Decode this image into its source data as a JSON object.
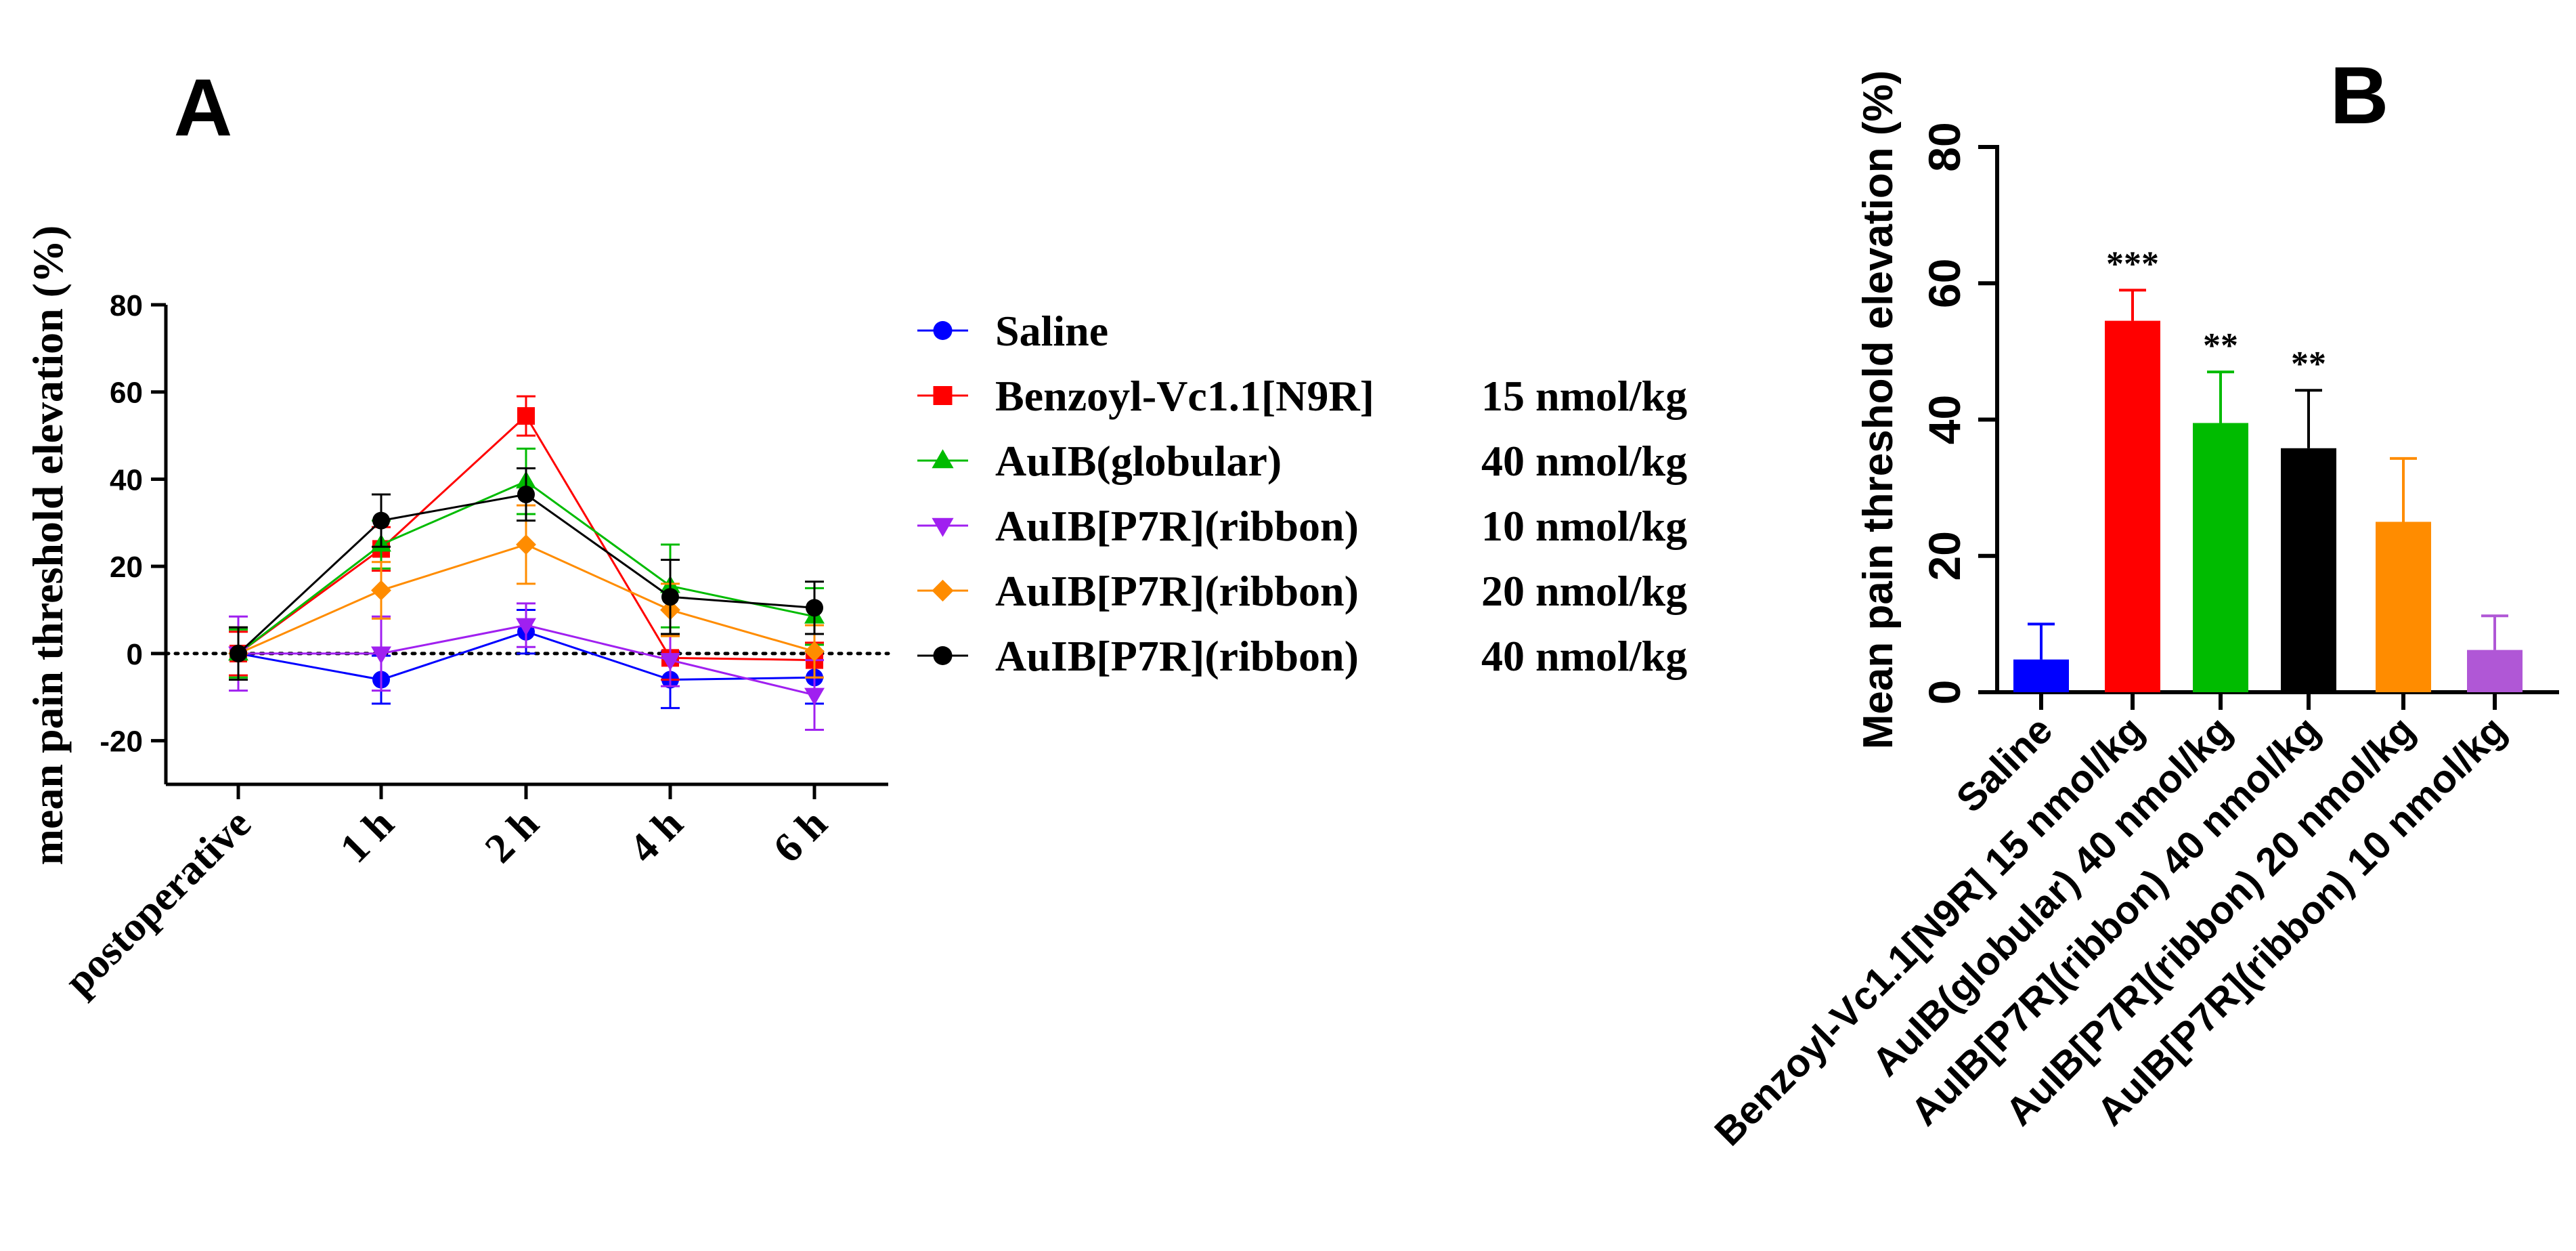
{
  "chart_data": [
    {
      "panel": "A",
      "type": "line",
      "ylabel": "mean pain threshold elevation (%)",
      "xlabel": "",
      "categories": [
        "postoperative",
        "1 h",
        "2 h",
        "4 h",
        "6 h"
      ],
      "ylim": [
        -30,
        80
      ],
      "yticks": [
        -20,
        0,
        20,
        40,
        60,
        80
      ],
      "zero_line": "dotted",
      "legend_position": "right",
      "series": [
        {
          "name": "Saline",
          "dose": "",
          "color": "#0000ff",
          "marker": "circle",
          "values": [
            0,
            -6,
            5,
            -6,
            -5.5
          ],
          "errors": [
            6,
            5.5,
            5,
            6.5,
            6
          ]
        },
        {
          "name": "Benzoyl-Vc1.1[N9R]",
          "dose": "15 nmol/kg",
          "color": "#ff0000",
          "marker": "square",
          "values": [
            0,
            24,
            54.5,
            -1,
            -1.5
          ],
          "errors": [
            5,
            5,
            4.5,
            5,
            4
          ]
        },
        {
          "name": "AuIB(globular)",
          "dose": "40 nmol/kg",
          "color": "#00bb00",
          "marker": "triangle-up",
          "values": [
            0,
            25,
            39.5,
            15.5,
            8.5
          ],
          "errors": [
            5.5,
            5.5,
            7.5,
            9.5,
            6.5
          ]
        },
        {
          "name": "AuIB[P7R](ribbon)",
          "dose": "10 nmol/kg",
          "color": "#a020f0",
          "marker": "triangle-down",
          "values": [
            0,
            0,
            6.5,
            -1.5,
            -9.5
          ],
          "errors": [
            8.5,
            8.5,
            5,
            6,
            8
          ]
        },
        {
          "name": "AuIB[P7R](ribbon)",
          "dose": "20 nmol/kg",
          "color": "#ff8c00",
          "marker": "diamond",
          "values": [
            0,
            14.5,
            25,
            10,
            0.5
          ],
          "errors": [
            6,
            6.5,
            9,
            6,
            6
          ]
        },
        {
          "name": "AuIB[P7R](ribbon)",
          "dose": "40 nmol/kg",
          "color": "#000000",
          "marker": "circle",
          "values": [
            0,
            30.5,
            36.5,
            13,
            10.5
          ],
          "errors": [
            6,
            6,
            6,
            8.5,
            6
          ]
        }
      ]
    },
    {
      "panel": "B",
      "type": "bar",
      "ylabel": "Mean pain threshold elevation (%)",
      "xlabel": "",
      "ylim": [
        0,
        80
      ],
      "yticks": [
        0,
        20,
        40,
        60,
        80
      ],
      "categories": [
        "Saline",
        "Benzoyl-Vc1.1[N9R] 15 nmol/kg",
        "AuIB(globular) 40 nmol/kg",
        "AuIB[P7R](ribbon) 40 nmol/kg",
        "AuIB[P7R](ribbon) 20 nmol/kg",
        "AuIB[P7R](ribbon) 10 nmol/kg"
      ],
      "values": [
        4.8,
        54.5,
        39.5,
        35.8,
        25,
        6.2
      ],
      "errors": [
        5.2,
        4.5,
        7.5,
        8.5,
        9.3,
        5
      ],
      "colors": [
        "#0000ff",
        "#ff0000",
        "#00bb00",
        "#000000",
        "#ff8c00",
        "#b057d6"
      ],
      "significance": [
        "",
        "***",
        "**",
        "**",
        "",
        ""
      ]
    }
  ]
}
